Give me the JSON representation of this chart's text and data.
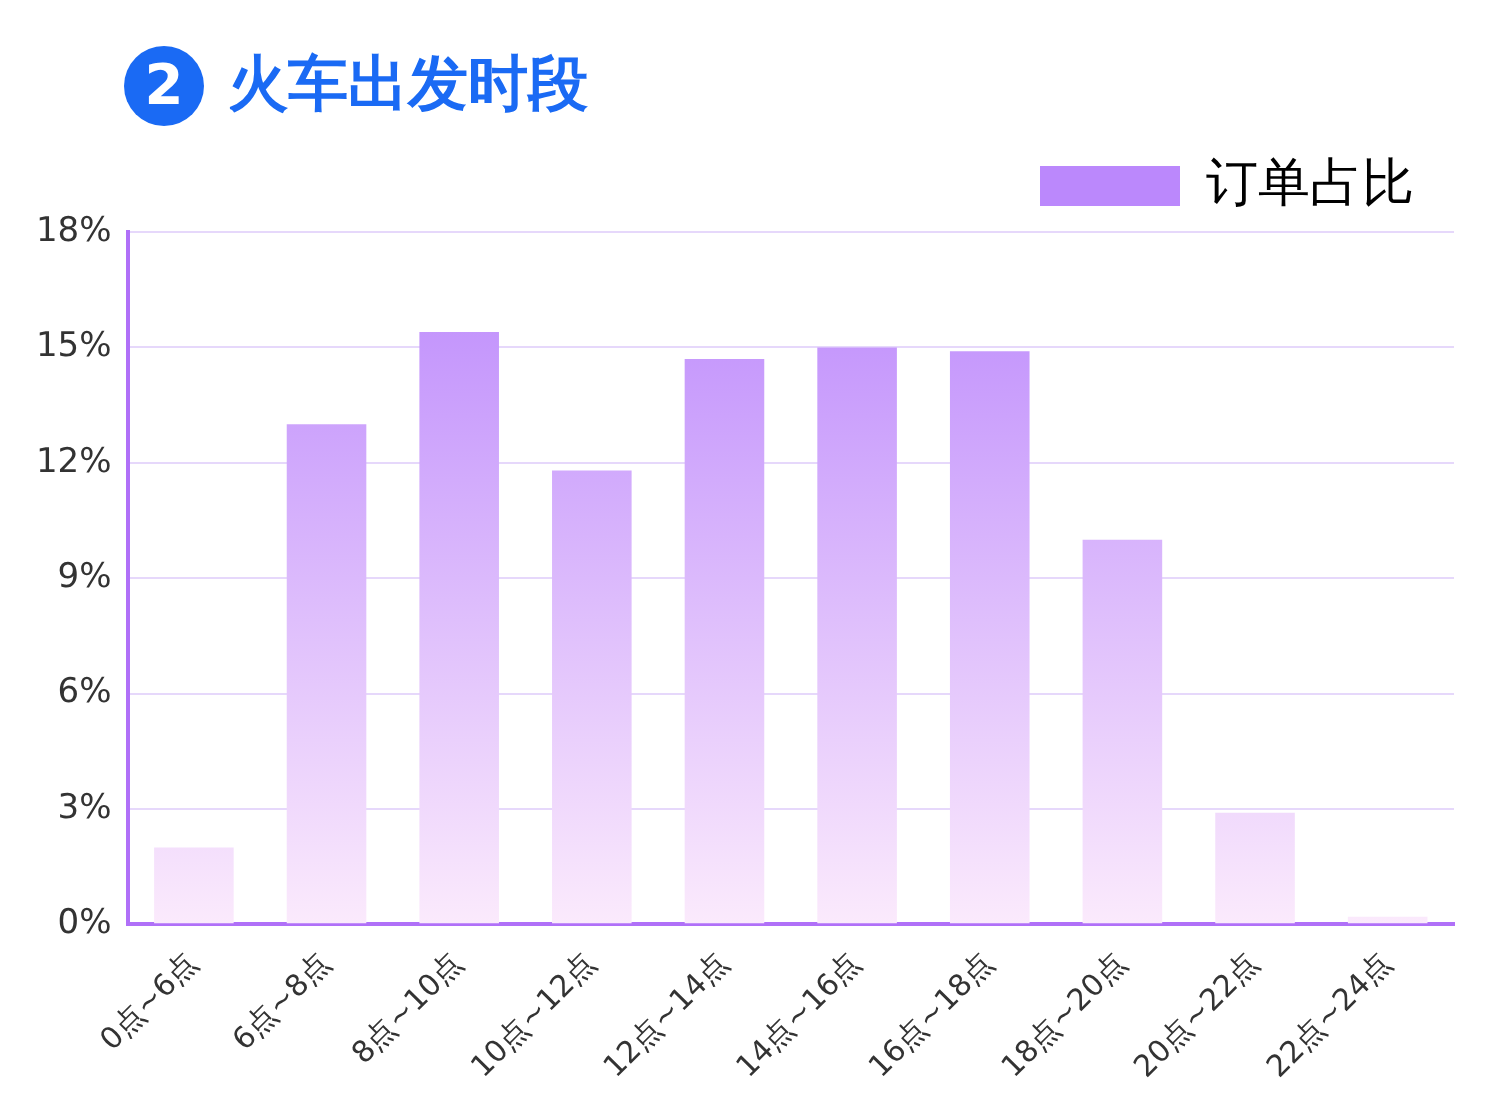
{
  "chart_data": {
    "type": "bar",
    "title": "2 火车出发时段",
    "categories": [
      "0点~6点",
      "6点~8点",
      "8点~10点",
      "10点~12点",
      "12点~14点",
      "14点~16点",
      "16点~18点",
      "18点~20点",
      "20点~22点",
      "22点~24点"
    ],
    "series": [
      {
        "name": "订单占比",
        "color": "#bb88fc",
        "values": [
          2.0,
          13.0,
          15.4,
          11.8,
          14.7,
          15.0,
          14.9,
          10.0,
          2.9,
          0.2
        ]
      }
    ],
    "ylim": [
      0,
      18
    ],
    "yticks": [
      {
        "value": 0,
        "label": "0%"
      },
      {
        "value": 3,
        "label": "3%"
      },
      {
        "value": 6,
        "label": "6%"
      },
      {
        "value": 9,
        "label": "9%"
      },
      {
        "value": 12,
        "label": "12%"
      },
      {
        "value": 15,
        "label": "15%"
      },
      {
        "value": 18,
        "label": "18%"
      }
    ],
    "grid": "y",
    "legend": "top right"
  }
}
